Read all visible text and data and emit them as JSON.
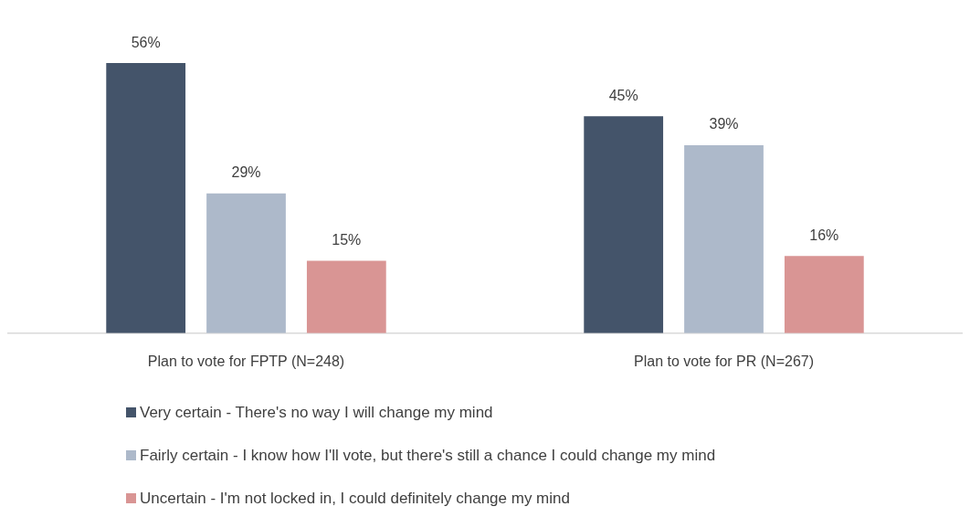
{
  "chart_data": {
    "type": "bar",
    "categories": [
      "Plan to vote for FPTP (N=248)",
      "Plan to vote for PR (N=267)"
    ],
    "series": [
      {
        "name": "Very certain - There's no way I will change my mind",
        "color": "#44546a",
        "values": [
          56,
          45
        ],
        "value_labels": [
          "56%",
          "45%"
        ]
      },
      {
        "name": "Fairly certain - I know how I'll vote, but there's still a chance I could change my mind",
        "color": "#adb9ca",
        "values": [
          29,
          39
        ],
        "value_labels": [
          "29%",
          "39%"
        ]
      },
      {
        "name": "Uncertain - I'm not locked in, I could definitely change my mind",
        "color": "#d99594",
        "values": [
          15,
          16
        ],
        "value_labels": [
          "15%",
          "16%"
        ]
      }
    ],
    "grid": false,
    "legend": "bottom",
    "tick_labels": "x"
  }
}
